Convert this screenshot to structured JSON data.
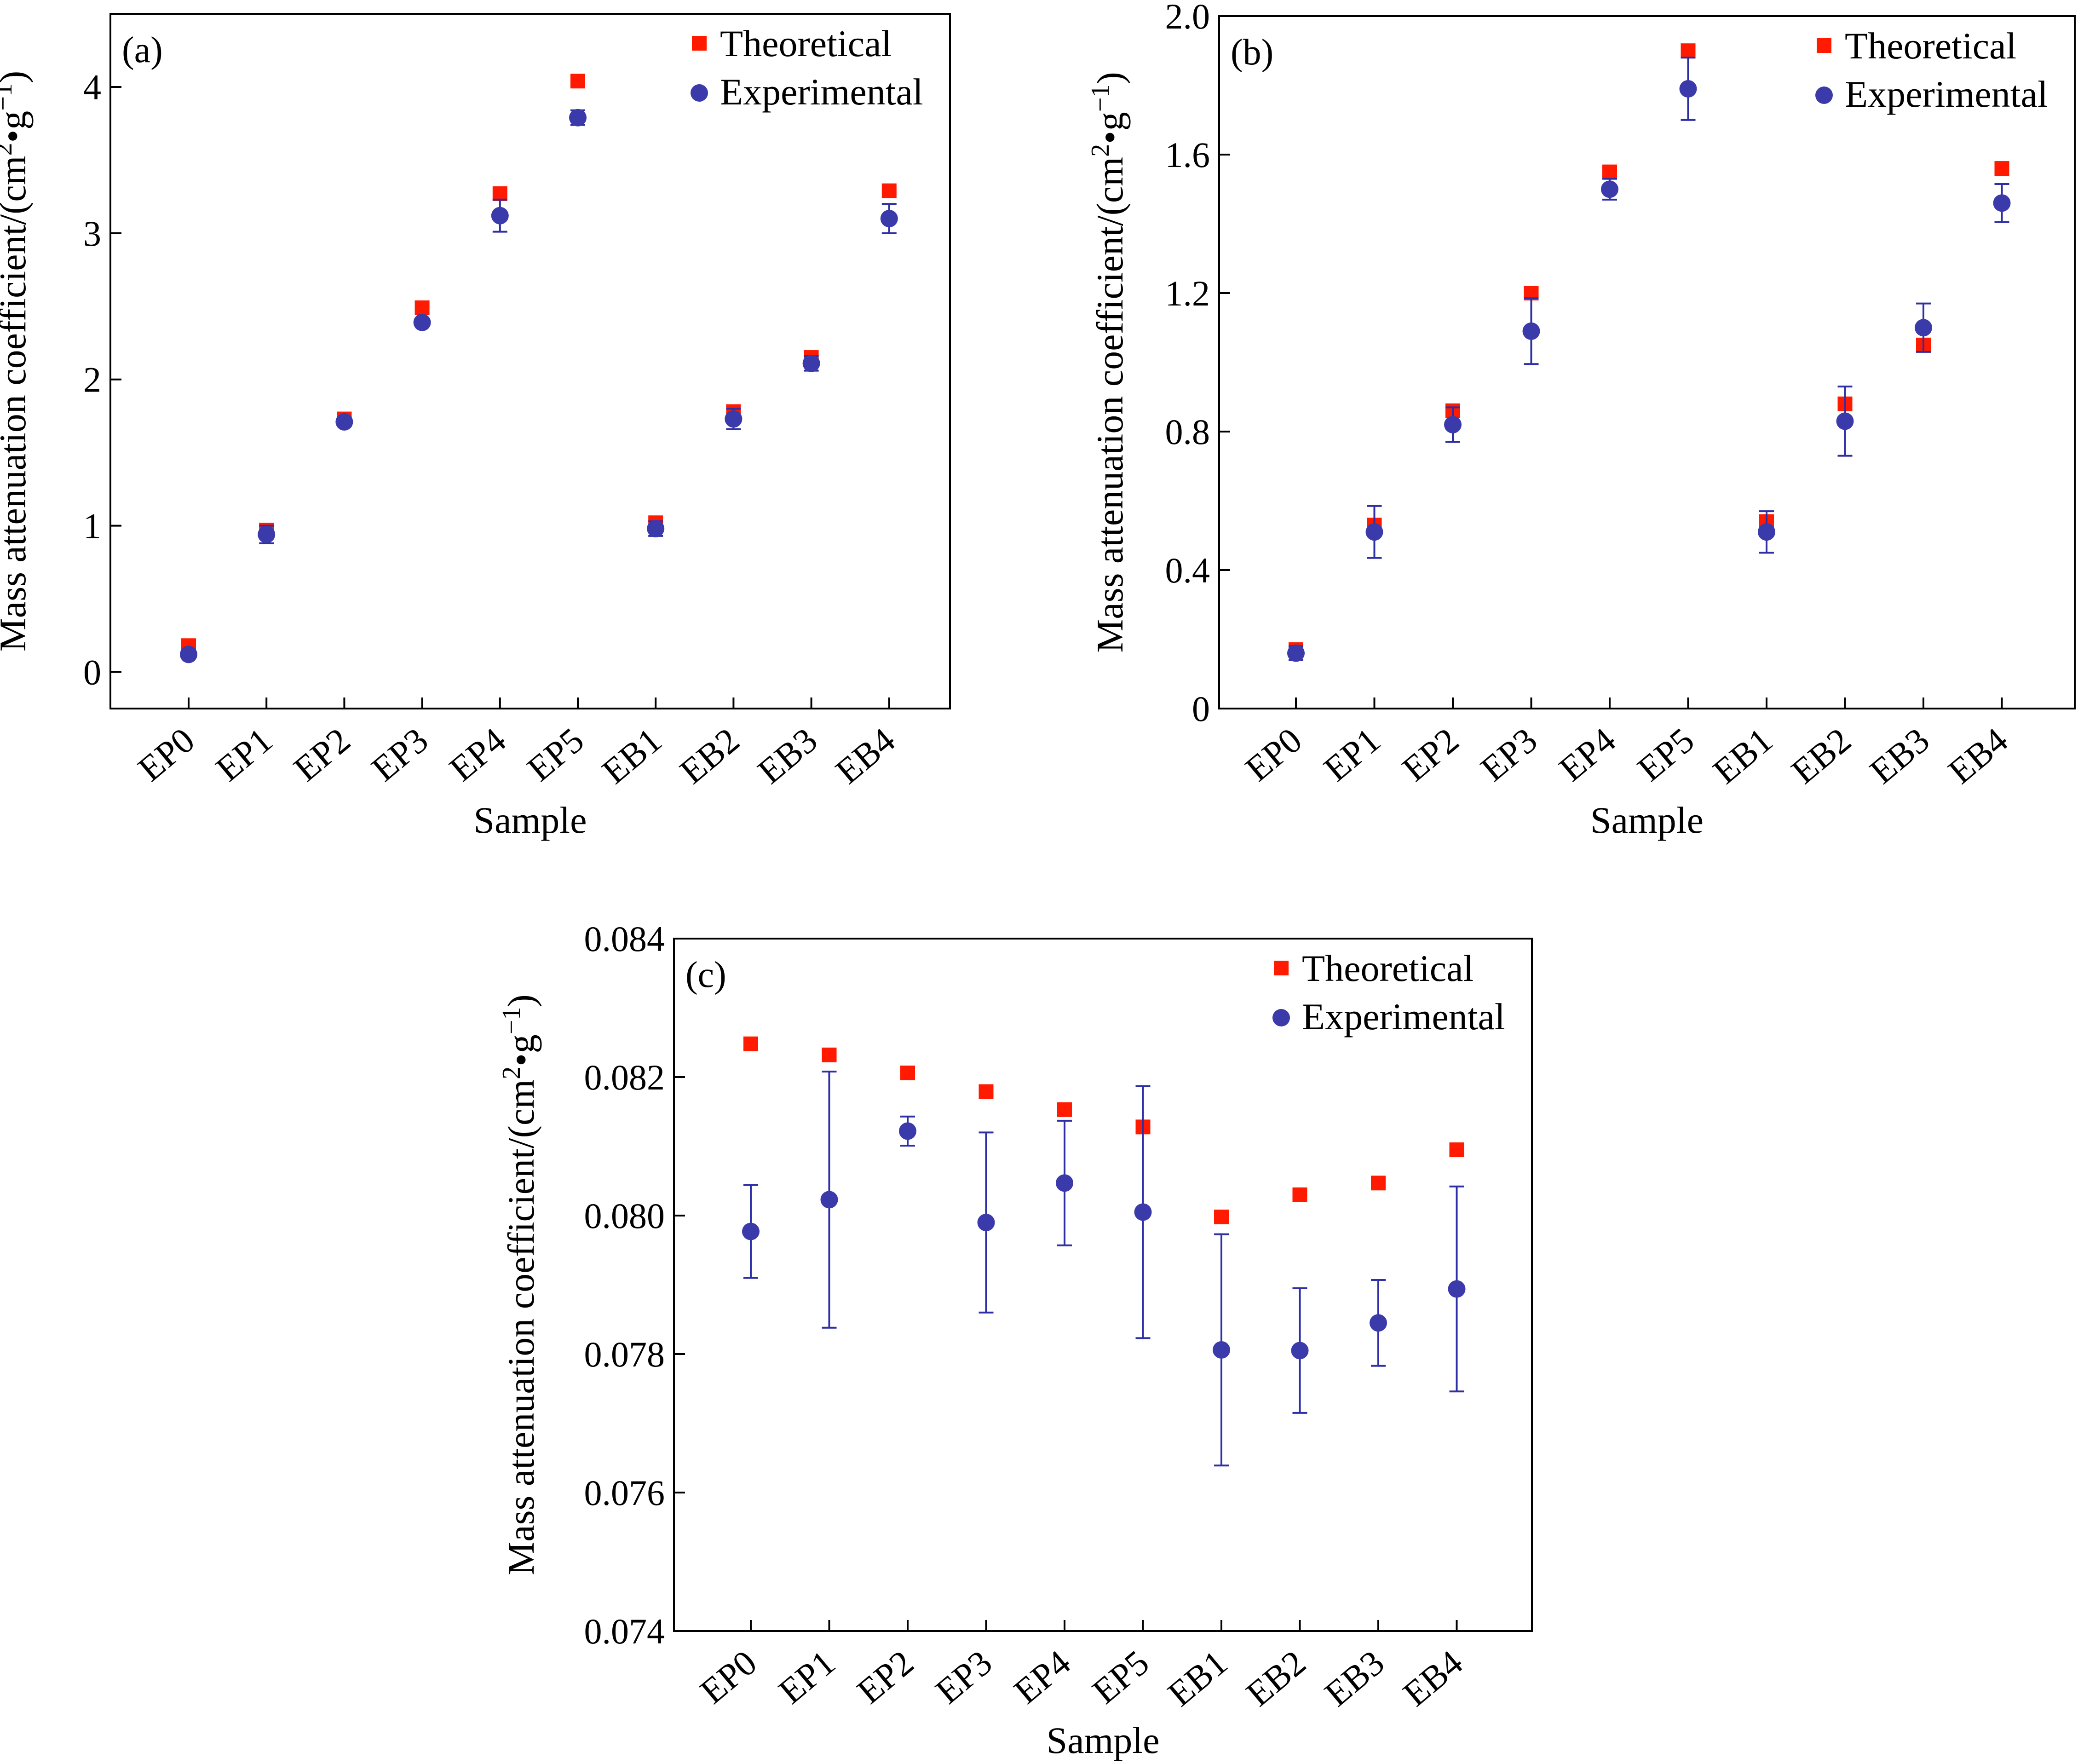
{
  "colors": {
    "theoretical": "#ff1a00",
    "experimental": "#3a3aaa",
    "axis": "#000000"
  },
  "chart_data": [
    {
      "type": "scatter",
      "panel_label": "(a)",
      "xlabel": "Sample",
      "ylabel": "Mass attenuation coefficient/(cm²•g⁻¹)",
      "ylabel_parts": {
        "main": "Mass attenuation coefficient/(cm",
        "sup1": "2",
        "mid": "•g",
        "sup2": "−1",
        "end": ")"
      },
      "categories": [
        "EP0",
        "EP1",
        "EP2",
        "EP3",
        "EP4",
        "EP5",
        "EB1",
        "EB2",
        "EB3",
        "EB4"
      ],
      "ylim": [
        -0.25,
        4.5
      ],
      "yticks": [
        0,
        1,
        2,
        3,
        4
      ],
      "ytick_labels": [
        "0",
        "1",
        "2",
        "3",
        "4"
      ],
      "legend": [
        "Theoretical",
        "Experimental"
      ],
      "legend_position": "top-right",
      "series": [
        {
          "name": "Theoretical",
          "marker": "square",
          "values": [
            0.18,
            0.97,
            1.73,
            2.49,
            3.27,
            4.04,
            1.02,
            1.78,
            2.15,
            3.29
          ]
        },
        {
          "name": "Experimental",
          "marker": "circle",
          "values": [
            0.12,
            0.94,
            1.71,
            2.39,
            3.12,
            3.79,
            0.98,
            1.73,
            2.11,
            3.1
          ],
          "errors": [
            0.02,
            0.06,
            0.03,
            0.02,
            0.11,
            0.05,
            0.05,
            0.07,
            0.05,
            0.1
          ]
        }
      ]
    },
    {
      "type": "scatter",
      "panel_label": "(b)",
      "xlabel": "Sample",
      "ylabel": "Mass attenuation coefficient/(cm²•g⁻¹)",
      "ylabel_parts": {
        "main": "Mass attenuation coefficient/(cm",
        "sup1": "2",
        "mid": "•g",
        "sup2": "−1",
        "end": ")"
      },
      "categories": [
        "EP0",
        "EP1",
        "EP2",
        "EP3",
        "EP4",
        "EP5",
        "EB1",
        "EB2",
        "EB3",
        "EB4"
      ],
      "ylim": [
        0,
        2.0
      ],
      "yticks": [
        0,
        0.4,
        0.8,
        1.2,
        1.6,
        2.0
      ],
      "ytick_labels": [
        "0",
        "0.4",
        "0.8",
        "1.2",
        "1.6",
        "2.0"
      ],
      "legend": [
        "Theoretical",
        "Experimental"
      ],
      "legend_position": "top-right",
      "series": [
        {
          "name": "Theoretical",
          "marker": "square",
          "values": [
            0.17,
            0.53,
            0.86,
            1.2,
            1.55,
            1.9,
            0.54,
            0.88,
            1.05,
            1.56
          ]
        },
        {
          "name": "Experimental",
          "marker": "circle",
          "values": [
            0.16,
            0.51,
            0.82,
            1.09,
            1.5,
            1.79,
            0.51,
            0.83,
            1.1,
            1.46
          ],
          "errors": [
            0.02,
            0.075,
            0.05,
            0.095,
            0.03,
            0.09,
            0.06,
            0.1,
            0.07,
            0.055
          ]
        }
      ]
    },
    {
      "type": "scatter",
      "panel_label": "(c)",
      "xlabel": "Sample",
      "ylabel": "Mass attenuation coefficient/(cm²•g⁻¹)",
      "ylabel_parts": {
        "main": "Mass attenuation coefficient/(cm",
        "sup1": "2",
        "mid": "•g",
        "sup2": "−1",
        "end": ")"
      },
      "categories": [
        "EP0",
        "EP1",
        "EP2",
        "EP3",
        "EP4",
        "EP5",
        "EB1",
        "EB2",
        "EB3",
        "EB4"
      ],
      "ylim": [
        0.074,
        0.084
      ],
      "yticks": [
        0.074,
        0.076,
        0.078,
        0.08,
        0.082,
        0.084
      ],
      "ytick_labels": [
        "0.074",
        "0.076",
        "0.078",
        "0.080",
        "0.082",
        "0.084"
      ],
      "legend": [
        "Theoretical",
        "Experimental"
      ],
      "legend_position": "top-right",
      "series": [
        {
          "name": "Theoretical",
          "marker": "square",
          "values": [
            0.08248,
            0.08232,
            0.08206,
            0.08179,
            0.08153,
            0.08128,
            0.07998,
            0.0803,
            0.08047,
            0.08095
          ]
        },
        {
          "name": "Experimental",
          "marker": "circle",
          "values": [
            0.07977,
            0.08023,
            0.08122,
            0.0799,
            0.08047,
            0.08005,
            0.07806,
            0.07805,
            0.07845,
            0.07894
          ],
          "errors": [
            0.00067,
            0.00185,
            0.00021,
            0.0013,
            0.0009,
            0.00182,
            0.00167,
            0.0009,
            0.00062,
            0.00148
          ]
        }
      ]
    }
  ]
}
